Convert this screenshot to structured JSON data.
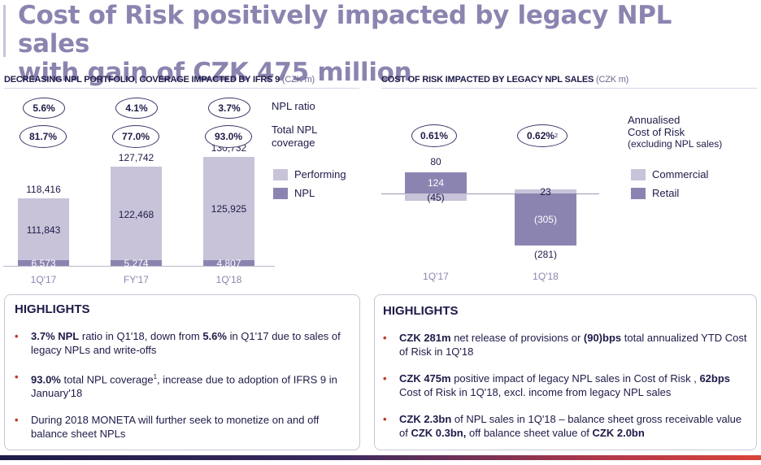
{
  "title": {
    "line1": "Cost of Risk positively impacted by legacy NPL sales",
    "line2": "with gain of CZK 475 million"
  },
  "left_section": {
    "heading": "DECREASING NPL PORTFOLIO, COVERAGE IMPACTED BY IFRS 9",
    "unit": "(CZK m)",
    "npl_ratio_label": "NPL ratio",
    "coverage_label_1": "Total NPL",
    "coverage_label_2": "coverage",
    "legend_performing": "Performing",
    "legend_npl": "NPL"
  },
  "right_section": {
    "heading": "COST OF RISK IMPACTED BY LEGACY NPL SALES",
    "unit": "(CZK m)",
    "annual_label_1": "Annualised",
    "annual_label_2": "Cost of Risk",
    "annual_label_3": "(excluding NPL sales)",
    "legend_commercial": "Commercial",
    "legend_retail": "Retail",
    "cor_values": [
      "0.61%",
      "0.62%"
    ],
    "cor_footnote": "2"
  },
  "colors": {
    "performing": "#c8c3d9",
    "npl": "#8c84b0",
    "title": "#8c84b0",
    "text": "#1d1b48",
    "bullet": "#c0392b"
  },
  "chart_data": [
    {
      "type": "bar",
      "stacked": true,
      "categories": [
        "1Q'17",
        "FY'17",
        "1Q'18"
      ],
      "series": [
        {
          "name": "NPL",
          "values": [
            6573,
            5274,
            4807
          ]
        },
        {
          "name": "Performing",
          "values": [
            111843,
            122468,
            125925
          ]
        }
      ],
      "totals": [
        118416,
        127742,
        130732
      ],
      "value_labels": {
        "npl": [
          "6,573",
          "5,274",
          "4,807"
        ],
        "performing": [
          "111,843",
          "122,468",
          "125,925"
        ],
        "totals": [
          "118,416",
          "127,742",
          "130,732"
        ]
      },
      "npl_ratio": [
        "5.6%",
        "4.1%",
        "3.7%"
      ],
      "npl_coverage": [
        "81.7%",
        "77.0%",
        "93.0%"
      ]
    },
    {
      "type": "bar",
      "stacked": true,
      "categories": [
        "1Q'17",
        "1Q'18"
      ],
      "series": [
        {
          "name": "Commercial",
          "values": [
            -45,
            23
          ]
        },
        {
          "name": "Retail",
          "values": [
            124,
            -305
          ]
        }
      ],
      "totals": [
        80,
        -281
      ],
      "value_labels": {
        "commercial": [
          "(45)",
          "23"
        ],
        "retail": [
          "124",
          "(305)"
        ],
        "totals": [
          "80",
          "(281)"
        ]
      }
    }
  ],
  "highlights_left": {
    "title": "HIGHLIGHTS",
    "items": [
      {
        "b1": "3.7% NPL",
        "t1": " ratio in Q1'18, down from ",
        "b2": "5.6%",
        "t2": " in Q1'17 due to sales of legacy NPLs and write-offs"
      },
      {
        "b1": "93.0%",
        "t1": " total NPL coverage",
        "sup": "1",
        "t2": ", increase due to adoption of IFRS 9 in January'18"
      },
      {
        "t1": "During 2018 MONETA will further seek to monetize on and off balance sheet NPLs"
      }
    ]
  },
  "highlights_right": {
    "title": "HIGHLIGHTS",
    "items": [
      {
        "b1": "CZK 281m",
        "t1": " net release of provisions or ",
        "b2": "(90)bps",
        "t2": " total annualized YTD Cost of Risk in 1Q'18"
      },
      {
        "b1": "CZK 475m",
        "t1": " positive impact of legacy NPL sales in Cost of Risk , ",
        "b2": "62bps",
        "t2": " Cost of Risk in 1Q'18, excl. income from legacy NPL sales"
      },
      {
        "b1": "CZK 2.3bn",
        "t1": " of NPL sales in 1Q'18 – balance sheet gross receivable value of ",
        "b2": "CZK 0.3bn,",
        "t2": " off balance sheet value of ",
        "b3": "CZK 2.0bn"
      }
    ]
  }
}
